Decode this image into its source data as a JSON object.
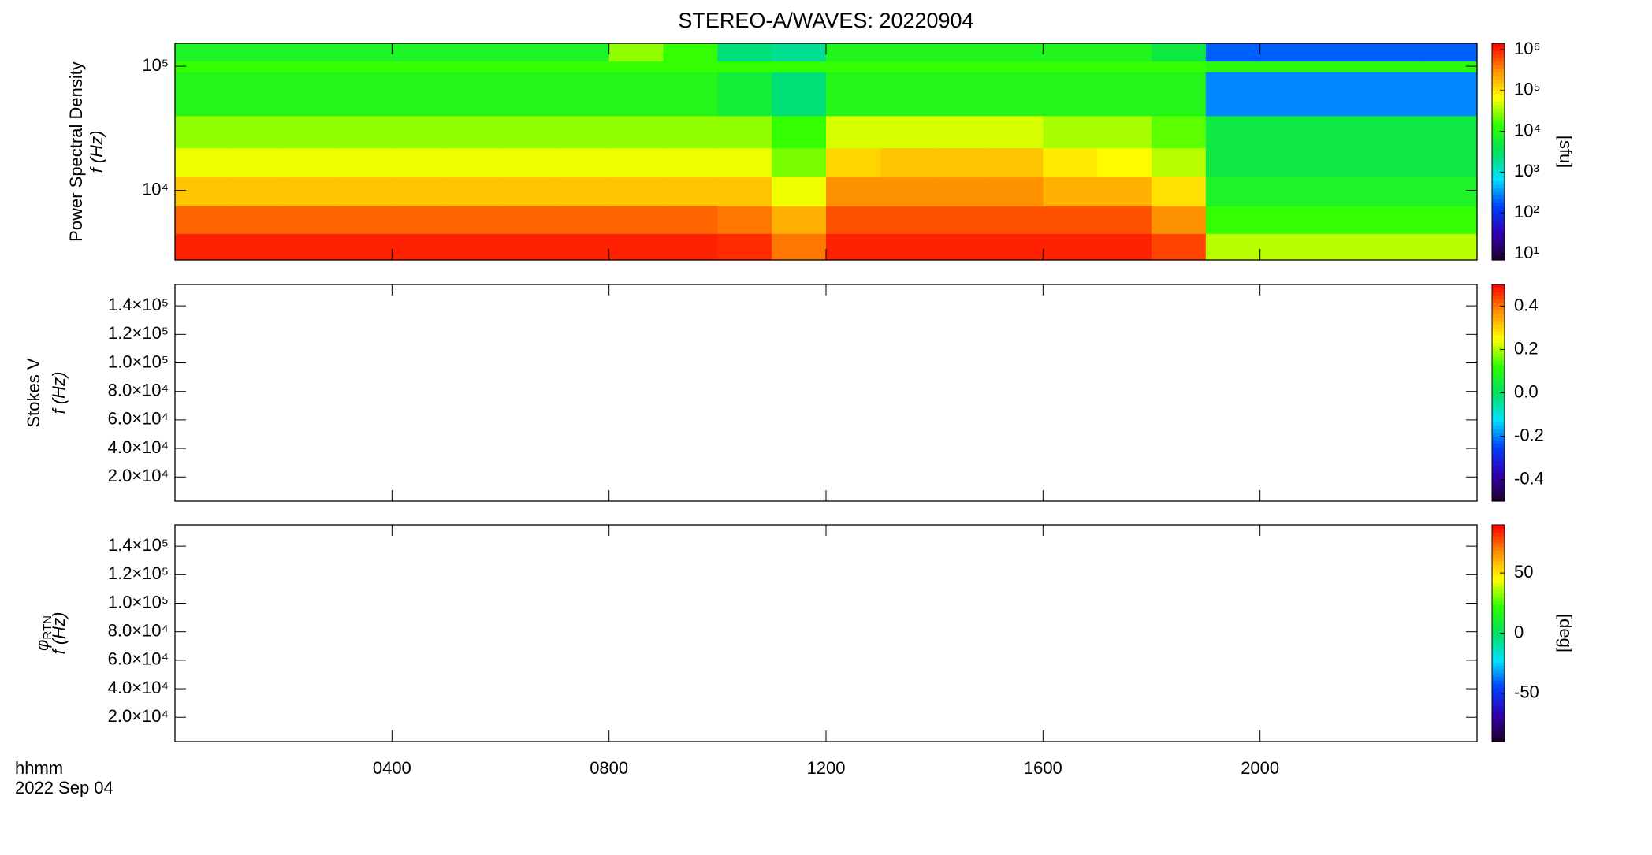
{
  "chart_data": [
    {
      "type": "heatmap",
      "title": "STEREO-A/WAVES: 20220904",
      "ylabel": "Power Spectral Density",
      "ylabel_var": "f (Hz)",
      "ylog": true,
      "ylim": [
        2750,
        153000
      ],
      "yticks": [
        {
          "value": 10000,
          "label": "10⁴"
        },
        {
          "value": 100000,
          "label": "10⁵"
        }
      ],
      "x_edges": [
        0,
        1,
        2,
        3,
        4,
        5,
        6,
        7,
        8,
        9,
        10,
        11,
        12,
        13,
        14,
        15,
        16,
        17,
        18,
        19,
        20,
        21,
        22,
        23,
        24
      ],
      "y_edges": [
        2750,
        4500,
        7500,
        13000,
        22000,
        40000,
        90000,
        110000,
        153000
      ],
      "z": [
        [
          1000000,
          1000000,
          1000000,
          1000000,
          1000000,
          1000000,
          1000000,
          1000000,
          1000000,
          1000000,
          900000,
          400000,
          1000000,
          1000000,
          1000000,
          1000000,
          1000000,
          1000000,
          700000,
          40000,
          40000,
          40000,
          40000,
          40000
        ],
        [
          500000,
          500000,
          500000,
          500000,
          500000,
          500000,
          500000,
          500000,
          500000,
          500000,
          400000,
          200000,
          600000,
          600000,
          600000,
          600000,
          600000,
          600000,
          300000,
          15000,
          15000,
          15000,
          15000,
          15000
        ],
        [
          150000,
          150000,
          150000,
          150000,
          150000,
          150000,
          150000,
          150000,
          150000,
          150000,
          150000,
          60000,
          300000,
          300000,
          300000,
          300000,
          200000,
          200000,
          100000,
          8000,
          8000,
          8000,
          8000,
          8000
        ],
        [
          60000,
          60000,
          60000,
          60000,
          60000,
          60000,
          60000,
          60000,
          60000,
          60000,
          60000,
          25000,
          120000,
          150000,
          150000,
          150000,
          90000,
          70000,
          40000,
          5000,
          5000,
          5000,
          5000,
          5000
        ],
        [
          30000,
          30000,
          30000,
          30000,
          30000,
          30000,
          30000,
          30000,
          30000,
          30000,
          30000,
          15000,
          50000,
          50000,
          50000,
          50000,
          35000,
          35000,
          20000,
          5000,
          5000,
          5000,
          5000,
          5000
        ],
        [
          10000,
          10000,
          10000,
          10000,
          10000,
          10000,
          10000,
          10000,
          10000,
          10000,
          6000,
          2500,
          10000,
          10000,
          10000,
          10000,
          10000,
          10000,
          10000,
          300,
          300,
          300,
          300,
          300
        ],
        [
          15000,
          15000,
          15000,
          15000,
          15000,
          15000,
          15000,
          15000,
          15000,
          15000,
          15000,
          15000,
          15000,
          15000,
          15000,
          15000,
          15000,
          15000,
          15000,
          12000,
          12000,
          12000,
          12000,
          12000
        ],
        [
          8000,
          8000,
          8000,
          8000,
          8000,
          8000,
          8000,
          8000,
          30000,
          15000,
          2500,
          2000,
          9000,
          9000,
          9000,
          9000,
          9000,
          9000,
          5000,
          200,
          200,
          200,
          200,
          200
        ]
      ],
      "colormap": [
        "#200028",
        "#3000b0",
        "#0040ff",
        "#00e0ff",
        "#00e060",
        "#30ff00",
        "#ffff00",
        "#ff9000",
        "#ff0000"
      ],
      "colorbar": {
        "log": true,
        "lim": [
          7,
          1430000
        ],
        "label": "[sfu]",
        "ticks": [
          {
            "value": 10,
            "label": "10¹"
          },
          {
            "value": 100,
            "label": "10²"
          },
          {
            "value": 1000,
            "label": "10³"
          },
          {
            "value": 10000,
            "label": "10⁴"
          },
          {
            "value": 100000,
            "label": "10⁵"
          },
          {
            "value": 1000000,
            "label": "10⁶"
          }
        ]
      }
    },
    {
      "type": "heatmap",
      "ylabel": "Stokes V",
      "ylabel_var": "f (Hz)",
      "ylim": [
        3000,
        155000
      ],
      "yticks": [
        {
          "value": 20000,
          "label": "2.0×10⁴"
        },
        {
          "value": 40000,
          "label": "4.0×10⁴"
        },
        {
          "value": 60000,
          "label": "6.0×10⁴"
        },
        {
          "value": 80000,
          "label": "8.0×10⁴"
        },
        {
          "value": 100000,
          "label": "1.0×10⁵"
        },
        {
          "value": 120000,
          "label": "1.2×10⁵"
        },
        {
          "value": 140000,
          "label": "1.4×10⁵"
        }
      ],
      "colormap": [
        "#200028",
        "#3000b0",
        "#0040ff",
        "#00e0ff",
        "#00e060",
        "#30ff00",
        "#ffff00",
        "#ff9000",
        "#ff0000"
      ],
      "colorbar": {
        "lim": [
          -0.5,
          0.5
        ],
        "ticks": [
          -0.4,
          -0.2,
          {
            "value": 0,
            "label": "0.0"
          },
          0.2,
          0.4
        ]
      }
    },
    {
      "type": "heatmap",
      "ylabel": "φ",
      "ylabel_sub": "RTN",
      "ylabel_var": "f (Hz)",
      "ylim": [
        3000,
        155000
      ],
      "yticks": [
        {
          "value": 20000,
          "label": "2.0×10⁴"
        },
        {
          "value": 40000,
          "label": "4.0×10⁴"
        },
        {
          "value": 60000,
          "label": "6.0×10⁴"
        },
        {
          "value": 80000,
          "label": "8.0×10⁴"
        },
        {
          "value": 100000,
          "label": "1.0×10⁵"
        },
        {
          "value": 120000,
          "label": "1.2×10⁵"
        },
        {
          "value": 140000,
          "label": "1.4×10⁵"
        }
      ],
      "colormap": [
        "#200028",
        "#3000b0",
        "#0040ff",
        "#00e0ff",
        "#00e060",
        "#30ff00",
        "#ffff00",
        "#ff9000",
        "#ff0000"
      ],
      "colorbar": {
        "lim": [
          -90,
          90
        ],
        "label": "[deg]",
        "ticks": [
          -50,
          0,
          50
        ]
      },
      "xlim": [
        0,
        24
      ],
      "xlabel": "hhmm",
      "date_label": "2022 Sep 04",
      "xticks": [
        {
          "value": 4,
          "label": "0400"
        },
        {
          "value": 8,
          "label": "0800"
        },
        {
          "value": 12,
          "label": "1200"
        },
        {
          "value": 16,
          "label": "1600"
        },
        {
          "value": 20,
          "label": "2000"
        }
      ]
    }
  ]
}
